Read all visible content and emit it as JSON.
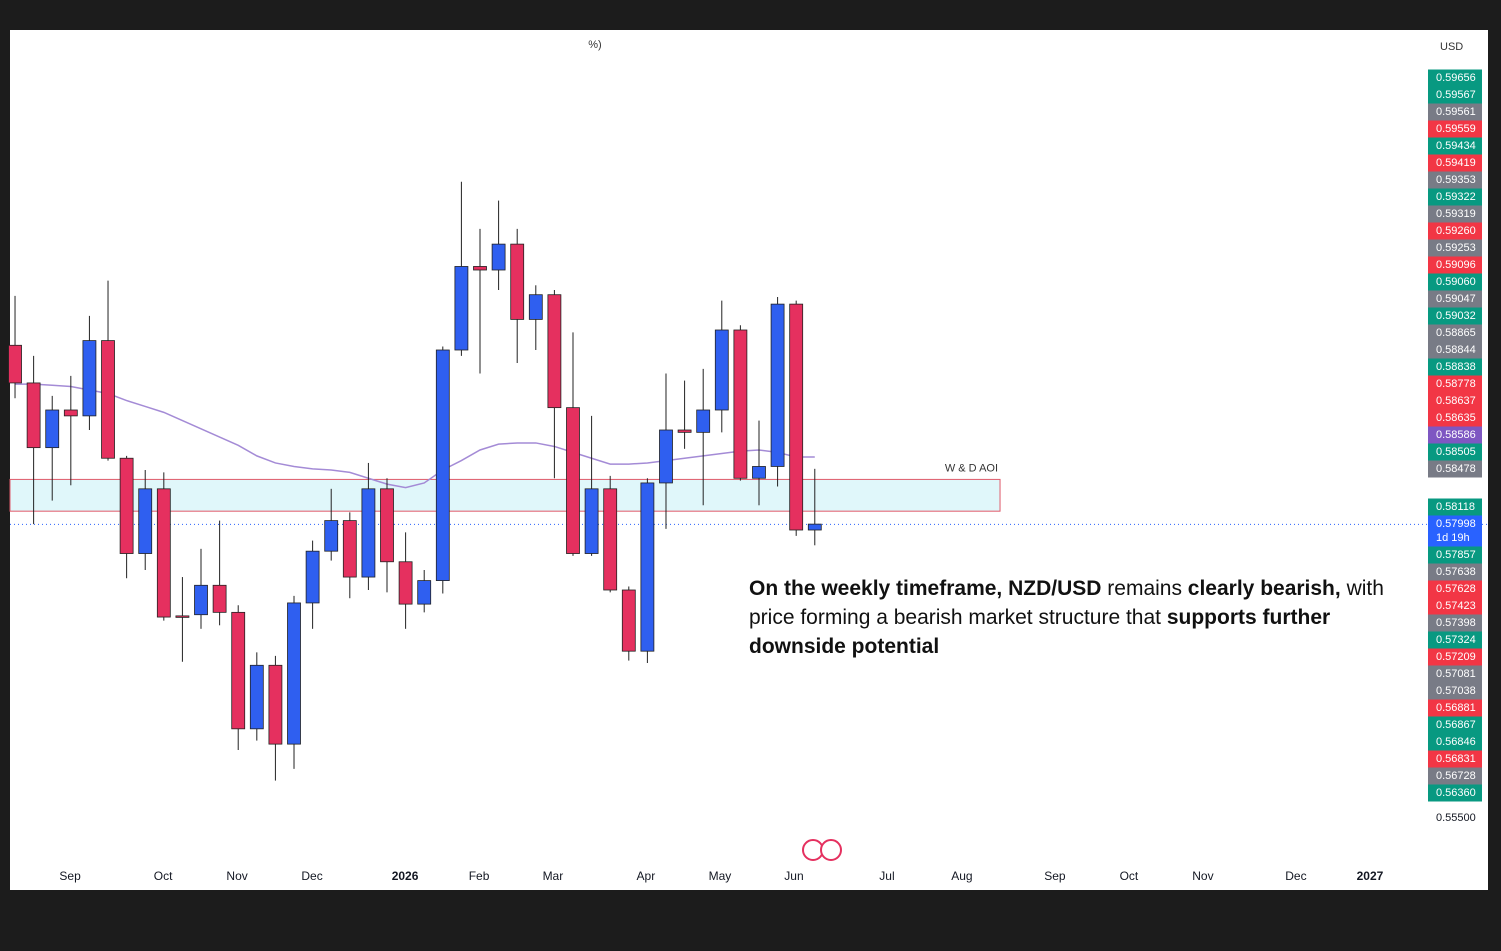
{
  "chart_data": {
    "type": "candlestick",
    "top_fragment": "%)",
    "currency": "USD",
    "zone_label": "W & D AOI",
    "zone": {
      "x": [
        -0.27,
        52.96
      ],
      "y": [
        0.5811,
        0.5838
      ]
    },
    "up_color": "#2f5ff0",
    "down_color": "#e5305f",
    "ma_color": "#a48bd6",
    "x": [
      0,
      1,
      2,
      3,
      4,
      5,
      6,
      7,
      8,
      9,
      10,
      11,
      12,
      13,
      14,
      15,
      16,
      17,
      18,
      19,
      20,
      21,
      22,
      23,
      24,
      25,
      26,
      27,
      28,
      29,
      30,
      31,
      32,
      33,
      34,
      35,
      36,
      37,
      38,
      39,
      40,
      41,
      42,
      43
    ],
    "open": [
      0.5952,
      0.592,
      0.5865,
      0.5897,
      0.5892,
      0.5956,
      0.5856,
      0.5775,
      0.583,
      0.5722,
      0.5723,
      0.5748,
      0.5725,
      0.5626,
      0.568,
      0.5613,
      0.5733,
      0.5777,
      0.5803,
      0.5755,
      0.583,
      0.5768,
      0.5732,
      0.5752,
      0.5948,
      0.6019,
      0.6016,
      0.6038,
      0.5974,
      0.5995,
      0.5899,
      0.5775,
      0.583,
      0.5744,
      0.5692,
      0.5835,
      0.588,
      0.5878,
      0.5897,
      0.5965,
      0.5839,
      0.5849,
      0.5987,
      0.5795
    ],
    "high": [
      0.5994,
      0.5943,
      0.5909,
      0.5926,
      0.5977,
      0.6007,
      0.5858,
      0.5846,
      0.5844,
      0.5755,
      0.5779,
      0.5803,
      0.5731,
      0.5691,
      0.5688,
      0.5739,
      0.5786,
      0.583,
      0.581,
      0.5852,
      0.5839,
      0.5793,
      0.5761,
      0.5951,
      0.6091,
      0.6051,
      0.6075,
      0.6051,
      0.6003,
      0.5999,
      0.5963,
      0.5892,
      0.5841,
      0.5747,
      0.5839,
      0.5928,
      0.5922,
      0.5932,
      0.599,
      0.5969,
      0.5888,
      0.5993,
      0.599,
      0.5847
    ],
    "low": [
      0.5907,
      0.58,
      0.582,
      0.5833,
      0.588,
      0.5854,
      0.5754,
      0.5761,
      0.5718,
      0.5683,
      0.5711,
      0.5714,
      0.5608,
      0.5616,
      0.5582,
      0.5592,
      0.5711,
      0.5769,
      0.5737,
      0.5744,
      0.5742,
      0.5711,
      0.5725,
      0.5741,
      0.5943,
      0.5928,
      0.5999,
      0.5937,
      0.5948,
      0.5839,
      0.5773,
      0.5773,
      0.5742,
      0.5684,
      0.5682,
      0.5796,
      0.5864,
      0.5816,
      0.5878,
      0.5837,
      0.5816,
      0.5832,
      0.579,
      0.5782
    ],
    "close": [
      0.592,
      0.5865,
      0.5897,
      0.5892,
      0.5956,
      0.5856,
      0.5775,
      0.583,
      0.5721,
      0.5721,
      0.5748,
      0.5725,
      0.5626,
      0.568,
      0.5613,
      0.5733,
      0.5777,
      0.5803,
      0.5755,
      0.583,
      0.5768,
      0.5732,
      0.5752,
      0.5948,
      0.6019,
      0.6016,
      0.6038,
      0.5974,
      0.5995,
      0.5899,
      0.5775,
      0.583,
      0.5744,
      0.5692,
      0.5835,
      0.588,
      0.5878,
      0.5897,
      0.5965,
      0.5839,
      0.5849,
      0.5987,
      0.5795,
      0.58
    ],
    "ma": [
      0.5919,
      0.5919,
      0.5918,
      0.5917,
      0.5914,
      0.5911,
      0.5905,
      0.59,
      0.5895,
      0.5888,
      0.5881,
      0.5874,
      0.5867,
      0.5858,
      0.5852,
      0.5849,
      0.5847,
      0.5846,
      0.5844,
      0.5839,
      0.5834,
      0.5831,
      0.5835,
      0.5846,
      0.5854,
      0.5863,
      0.5868,
      0.5869,
      0.5869,
      0.5866,
      0.5861,
      0.5856,
      0.5851,
      0.5851,
      0.5852,
      0.5854,
      0.5856,
      0.5858,
      0.586,
      0.5862,
      0.5863,
      0.5861,
      0.5857,
      0.5857
    ],
    "xlim": [
      -0.27,
      75.97
    ],
    "ylim": [
      0.5489,
      0.622
    ],
    "xticks": [
      {
        "value": 2.96,
        "label": "Sep"
      },
      {
        "value": 7.96,
        "label": "Oct"
      },
      {
        "value": 11.94,
        "label": "Nov"
      },
      {
        "value": 15.97,
        "label": "Dec"
      },
      {
        "value": 20.97,
        "label": "2026",
        "bold": true
      },
      {
        "value": 24.95,
        "label": "Feb"
      },
      {
        "value": 28.92,
        "label": "Mar"
      },
      {
        "value": 33.92,
        "label": "Apr"
      },
      {
        "value": 37.9,
        "label": "May"
      },
      {
        "value": 41.88,
        "label": "Jun"
      },
      {
        "value": 46.88,
        "label": "Jul"
      },
      {
        "value": 50.91,
        "label": "Aug"
      },
      {
        "value": 55.91,
        "label": "Sep"
      },
      {
        "value": 59.89,
        "label": "Oct"
      },
      {
        "value": 63.87,
        "label": "Nov"
      },
      {
        "value": 68.87,
        "label": "Dec"
      },
      {
        "value": 72.85,
        "label": "2027",
        "bold": true
      }
    ],
    "yticks": [
      {
        "value": 0.555,
        "label": "0.55500"
      }
    ],
    "price_label_groups": [
      [
        {
          "value": 0.59656,
          "color": "#089981"
        },
        {
          "value": 0.59567,
          "color": "#089981"
        },
        {
          "value": 0.59561,
          "color": "#787b86"
        },
        {
          "value": 0.59559,
          "color": "#f23645"
        },
        {
          "value": 0.59434,
          "color": "#089981"
        },
        {
          "value": 0.59419,
          "color": "#f23645"
        },
        {
          "value": 0.59353,
          "color": "#787b86"
        },
        {
          "value": 0.59322,
          "color": "#089981"
        },
        {
          "value": 0.59319,
          "color": "#787b86"
        },
        {
          "value": 0.5926,
          "label": "0.59260",
          "color": "#f23645"
        },
        {
          "value": 0.59253,
          "color": "#787b86"
        },
        {
          "value": 0.59096,
          "color": "#f23645"
        },
        {
          "value": 0.5906,
          "label": "0.59060",
          "color": "#089981"
        },
        {
          "value": 0.59047,
          "color": "#787b86"
        },
        {
          "value": 0.59032,
          "color": "#089981"
        },
        {
          "value": 0.58865,
          "color": "#787b86"
        },
        {
          "value": 0.58844,
          "color": "#787b86"
        },
        {
          "value": 0.58838,
          "color": "#089981"
        },
        {
          "value": 0.58778,
          "color": "#f23645"
        },
        {
          "value": 0.58637,
          "color": "#f23645"
        },
        {
          "value": 0.58635,
          "color": "#f23645"
        },
        {
          "value": 0.58586,
          "color": "#7e57c2"
        },
        {
          "value": 0.58505,
          "color": "#089981"
        },
        {
          "value": 0.58478,
          "color": "#787b86"
        }
      ],
      [
        {
          "value": 0.58118,
          "color": "#089981"
        },
        {
          "value": 0.57998,
          "color": "#2962ff",
          "countdown": "1d 19h"
        }
      ],
      [
        {
          "value": 0.57857,
          "color": "#089981"
        },
        {
          "value": 0.57638,
          "color": "#787b86"
        },
        {
          "value": 0.57628,
          "color": "#f23645"
        },
        {
          "value": 0.57423,
          "color": "#f23645"
        },
        {
          "value": 0.57398,
          "color": "#787b86"
        },
        {
          "value": 0.57324,
          "color": "#089981"
        },
        {
          "value": 0.57209,
          "color": "#f23645"
        },
        {
          "value": 0.57081,
          "color": "#787b86"
        },
        {
          "value": 0.57038,
          "color": "#787b86"
        },
        {
          "value": 0.56881,
          "color": "#f23645"
        },
        {
          "value": 0.56867,
          "color": "#089981"
        },
        {
          "value": 0.56846,
          "color": "#089981"
        },
        {
          "value": 0.56831,
          "color": "#f23645"
        },
        {
          "value": 0.56728,
          "color": "#787b86"
        },
        {
          "value": 0.5636,
          "label": "0.56360",
          "color": "#089981"
        }
      ]
    ],
    "annotation": [
      {
        "text": "On the weekly timeframe, NZD/USD",
        "bold": true
      },
      {
        "text": " remains ",
        "bold": false
      },
      {
        "text": "clearly bearish,",
        "bold": true
      },
      {
        "text": " with price forming a bearish market structure that ",
        "bold": false
      },
      {
        "text": "supports further downside potential",
        "bold": true
      }
    ]
  }
}
